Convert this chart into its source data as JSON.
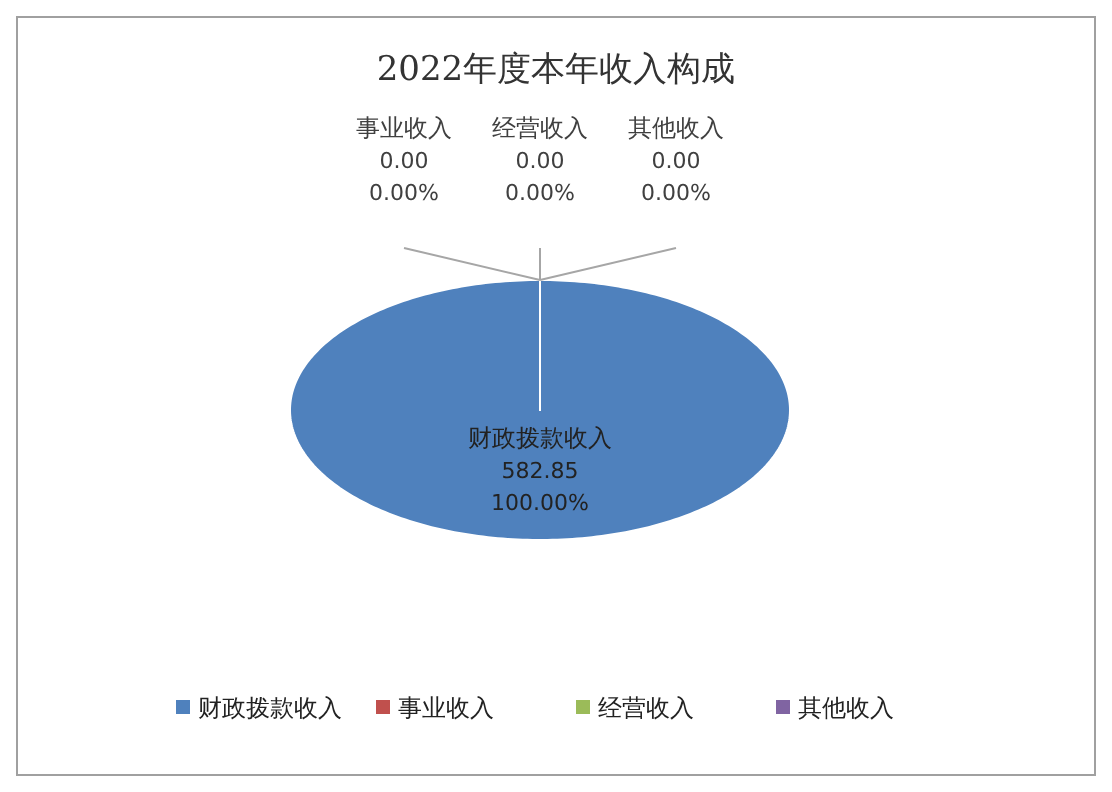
{
  "chart_data": {
    "type": "pie",
    "title": "2022年度本年收入构成",
    "categories": [
      "财政拨款收入",
      "事业收入",
      "经营收入",
      "其他收入"
    ],
    "values": [
      582.85,
      0,
      0,
      0
    ],
    "colors": [
      "#4f81bd",
      "#c0504d",
      "#9bbb59",
      "#8064a2"
    ],
    "value_labels": [
      "582.85\n100.00%",
      "0.00\n0.00%",
      "0.00\n0.00%",
      "0.00\n0.00%"
    ],
    "legend": "bottom"
  }
}
